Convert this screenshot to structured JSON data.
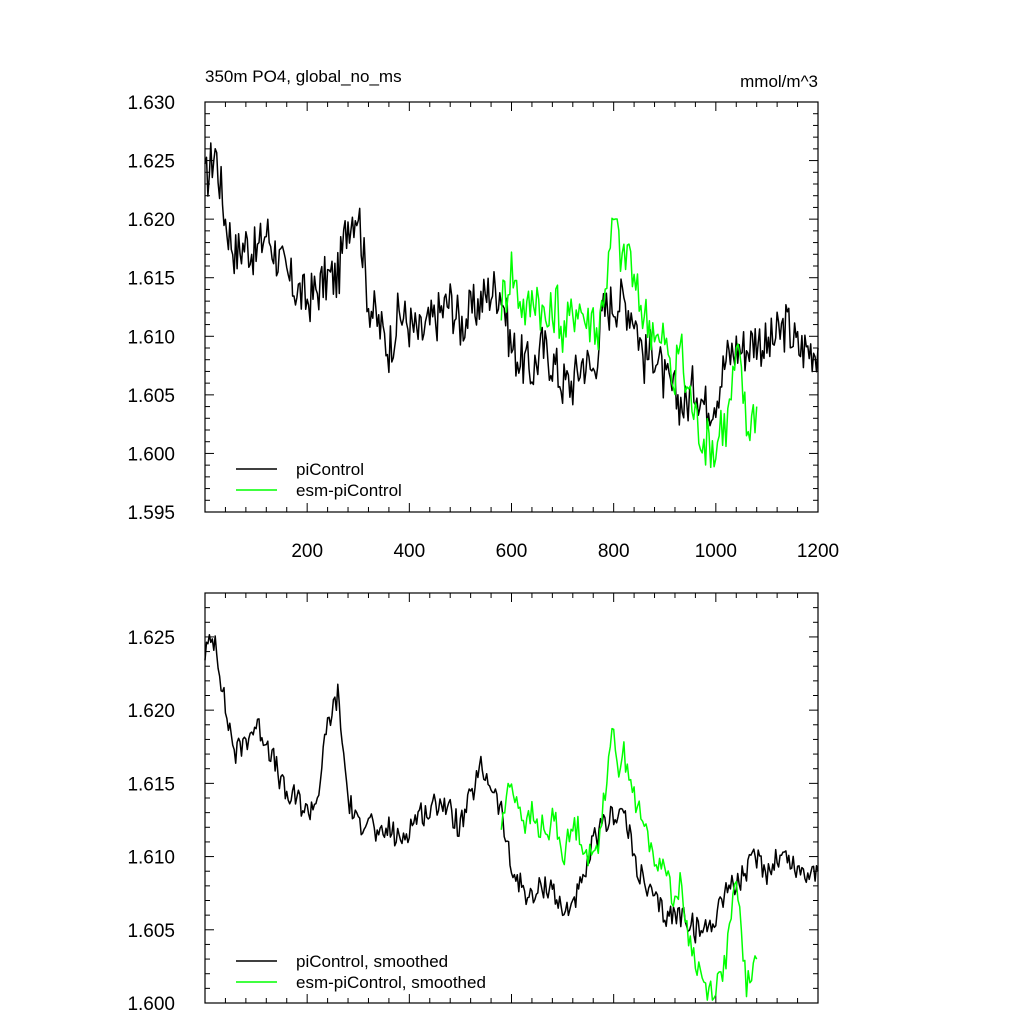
{
  "header": {
    "title": "350m PO4, global_no_ms",
    "units": "mmol/m^3"
  },
  "colors": {
    "piControl": "#000000",
    "esm_piControl": "#00ff00",
    "axes": "#000000"
  },
  "chart_data": [
    {
      "type": "line",
      "panel": "top",
      "title": "350m PO4, global_no_ms",
      "units": "mmol/m^3",
      "xlabel": "",
      "ylabel": "",
      "xlim": [
        0,
        1200
      ],
      "ylim": [
        1.595,
        1.63
      ],
      "grid": false,
      "legend": "bottom-left",
      "x_ticks": [
        "200",
        "400",
        "600",
        "800",
        "1000",
        "1200"
      ],
      "y_ticks": [
        "1.595",
        "1.600",
        "1.605",
        "1.610",
        "1.615",
        "1.620",
        "1.625",
        "1.630"
      ],
      "legend_entries": [
        "piControl",
        "esm-piControl"
      ],
      "series": [
        {
          "name": "piControl",
          "color": "#000000",
          "x_start": 0,
          "x_step": 20,
          "values": [
            1.623,
            1.626,
            1.62,
            1.617,
            1.618,
            1.617,
            1.619,
            1.617,
            1.615,
            1.614,
            1.613,
            1.614,
            1.615,
            1.615,
            1.62,
            1.621,
            1.613,
            1.611,
            1.609,
            1.612,
            1.611,
            1.61,
            1.611,
            1.612,
            1.613,
            1.611,
            1.612,
            1.613,
            1.614,
            1.614,
            1.609,
            1.608,
            1.607,
            1.609,
            1.608,
            1.606,
            1.606,
            1.608,
            1.607,
            1.612,
            1.613,
            1.613,
            1.612,
            1.608,
            1.609,
            1.606,
            1.605,
            1.604,
            1.606,
            1.604,
            1.605,
            1.608,
            1.609,
            1.609,
            1.61,
            1.609,
            1.61,
            1.611,
            1.609,
            1.609,
            1.609
          ]
        },
        {
          "name": "esm-piControl",
          "color": "#00ff00",
          "x_start": 580,
          "x_step": 10,
          "values": [
            1.613,
            1.614,
            1.616,
            1.614,
            1.613,
            1.612,
            1.613,
            1.614,
            1.612,
            1.611,
            1.612,
            1.613,
            1.61,
            1.611,
            1.612,
            1.613,
            1.612,
            1.611,
            1.612,
            1.61,
            1.614,
            1.616,
            1.62,
            1.618,
            1.616,
            1.618,
            1.614,
            1.613,
            1.612,
            1.611,
            1.611,
            1.609,
            1.61,
            1.607,
            1.606,
            1.61,
            1.606,
            1.605,
            1.603,
            1.602,
            1.601,
            1.601,
            1.6,
            1.603,
            1.602,
            1.605,
            1.608,
            1.607,
            1.602,
            1.603,
            1.604
          ]
        }
      ]
    },
    {
      "type": "line",
      "panel": "bottom",
      "title": "",
      "xlabel": "",
      "ylabel": "",
      "xlim": [
        0,
        1200
      ],
      "ylim": [
        1.6,
        1.628
      ],
      "grid": false,
      "legend": "bottom-left",
      "y_ticks": [
        "1.600",
        "1.605",
        "1.610",
        "1.615",
        "1.620",
        "1.625"
      ],
      "legend_entries": [
        "piControl, smoothed",
        "esm-piControl, smoothed"
      ],
      "series": [
        {
          "name": "piControl, smoothed",
          "color": "#000000",
          "x_start": 0,
          "x_step": 20,
          "values": [
            1.624,
            1.625,
            1.62,
            1.617,
            1.618,
            1.619,
            1.618,
            1.616,
            1.614,
            1.614,
            1.613,
            1.614,
            1.619,
            1.621,
            1.614,
            1.612,
            1.613,
            1.611,
            1.612,
            1.611,
            1.612,
            1.613,
            1.613,
            1.614,
            1.613,
            1.612,
            1.614,
            1.616,
            1.615,
            1.613,
            1.609,
            1.608,
            1.607,
            1.608,
            1.608,
            1.606,
            1.607,
            1.608,
            1.611,
            1.612,
            1.613,
            1.613,
            1.61,
            1.608,
            1.607,
            1.606,
            1.606,
            1.606,
            1.605,
            1.605,
            1.606,
            1.608,
            1.608,
            1.609,
            1.61,
            1.609,
            1.61,
            1.61,
            1.609,
            1.609,
            1.609
          ]
        },
        {
          "name": "esm-piControl, smoothed",
          "color": "#00ff00",
          "x_start": 580,
          "x_step": 10,
          "values": [
            1.612,
            1.614,
            1.615,
            1.614,
            1.613,
            1.612,
            1.613,
            1.612,
            1.612,
            1.611,
            1.613,
            1.612,
            1.61,
            1.611,
            1.612,
            1.612,
            1.611,
            1.61,
            1.61,
            1.611,
            1.614,
            1.616,
            1.619,
            1.616,
            1.617,
            1.616,
            1.614,
            1.613,
            1.612,
            1.611,
            1.61,
            1.609,
            1.61,
            1.608,
            1.607,
            1.608,
            1.606,
            1.604,
            1.603,
            1.602,
            1.601,
            1.601,
            1.601,
            1.602,
            1.603,
            1.606,
            1.608,
            1.605,
            1.601,
            1.602,
            1.603
          ]
        }
      ]
    }
  ]
}
